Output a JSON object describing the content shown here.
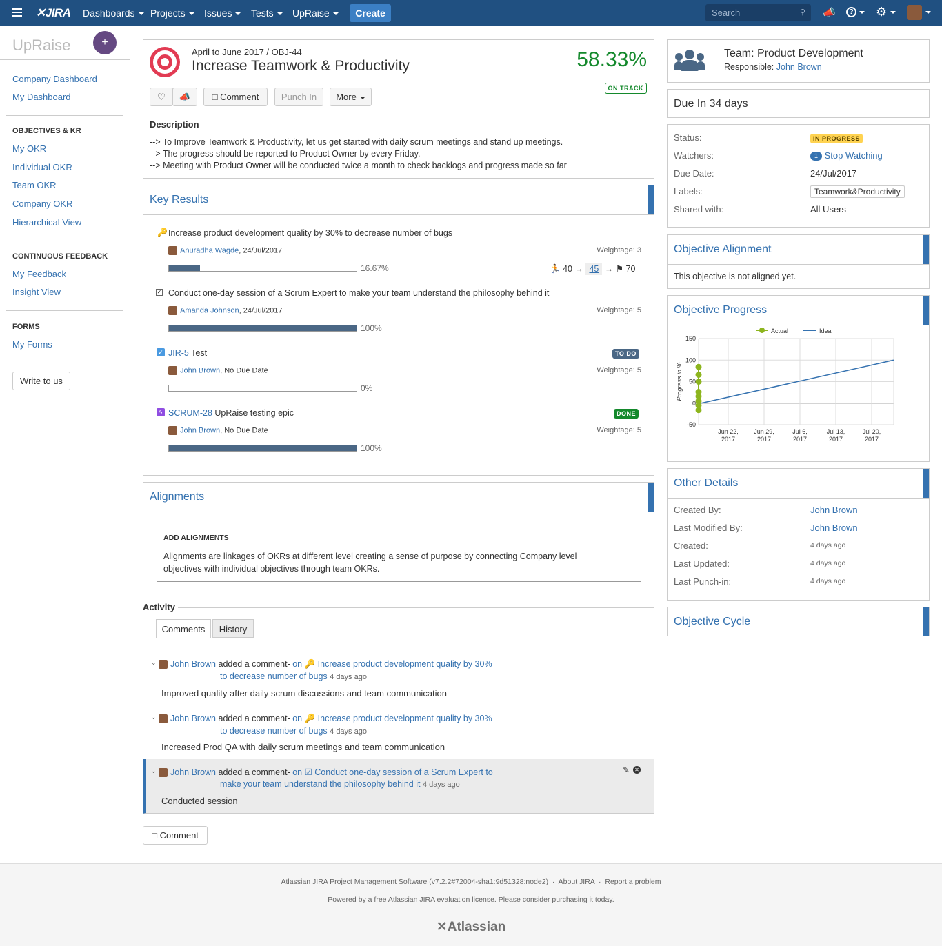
{
  "header": {
    "logo": "JIRA",
    "nav": [
      "Dashboards",
      "Projects",
      "Issues",
      "Tests",
      "UpRaise"
    ],
    "create": "Create",
    "search_placeholder": "Search"
  },
  "sidebar": {
    "app_name": "UpRaise",
    "top_links": [
      "Company Dashboard",
      "My Dashboard"
    ],
    "okr_heading": "OBJECTIVES & KR",
    "okr_links": [
      "My OKR",
      "Individual OKR",
      "Team OKR",
      "Company OKR",
      "Hierarchical View"
    ],
    "feedback_heading": "CONTINUOUS FEEDBACK",
    "feedback_links": [
      "My Feedback",
      "Insight View"
    ],
    "forms_heading": "FORMS",
    "forms_links": [
      "My Forms"
    ],
    "write_btn": "Write to us"
  },
  "objective": {
    "breadcrumb": "April to June 2017 / OBJ-44",
    "title": "Increase Teamwork & Productivity",
    "percent": "58.33%",
    "status": "ON TRACK",
    "buttons": {
      "comment": "Comment",
      "punch": "Punch In",
      "more": "More"
    },
    "desc_heading": "Description",
    "desc_lines": [
      "--> To Improve Teamwork & Productivity, let us get started with daily scrum meetings and stand up meetings.",
      "--> The progress should be reported to Product Owner by every Friday.",
      "--> Meeting with Product Owner will be conducted twice a month to check backlogs and progress made so far"
    ]
  },
  "key_results": {
    "title": "Key Results",
    "items": [
      {
        "title": "Increase product development quality by 30% to decrease number of bugs",
        "owner": "Anuradha Wagde",
        "meta": ", 24/Jul/2017",
        "weight": "Weightage: 3",
        "pct": "16.67%",
        "fill": 16.67,
        "start": "40",
        "current": "45",
        "target": "70"
      },
      {
        "title": "Conduct one-day session of a Scrum Expert to make your team understand the philosophy behind it",
        "owner": "Amanda Johnson",
        "meta": ", 24/Jul/2017",
        "weight": "Weightage: 5",
        "pct": "100%",
        "fill": 100
      },
      {
        "key": "JIR-5",
        "title": " Test",
        "owner": "John Brown",
        "meta": ", No Due Date",
        "weight": "Weightage: 5",
        "pct": "0%",
        "fill": 0,
        "badge": "TO DO"
      },
      {
        "key": "SCRUM-28",
        "title": " UpRaise testing epic",
        "owner": "John Brown",
        "meta": ", No Due Date",
        "weight": "Weightage: 5",
        "pct": "100%",
        "fill": 100,
        "badge": "DONE"
      }
    ]
  },
  "alignments": {
    "title": "Alignments",
    "box_heading": "ADD ALIGNMENTS",
    "box_text_1": "Alignments are linkages of OKRs at different level creating a sense of purpose by connecting Company level",
    "box_text_2": "objectives with individual objectives through team OKRs."
  },
  "activity": {
    "title": "Activity",
    "tabs": [
      "Comments",
      "History"
    ],
    "comments": [
      {
        "author": "John Brown",
        "action": " added a comment- ",
        "on": "on",
        "link1": "Increase product development quality by 30%",
        "link2": "to decrease number of bugs",
        "time": "4 days ago",
        "text": "Improved quality after daily scrum discussions and team communication"
      },
      {
        "author": "John Brown",
        "action": " added a comment- ",
        "on": "on",
        "link1": "Increase product development quality by 30%",
        "link2": "to decrease number of bugs",
        "time": "4 days ago",
        "text": "Increased Prod QA with daily scrum meetings and team communication"
      },
      {
        "author": "John Brown",
        "action": " added a comment- ",
        "on": "on",
        "link1": "Conduct one-day session of a Scrum Expert to",
        "link2": "make your team understand the philosophy behind it",
        "time": "4 days ago",
        "text": "Conducted session"
      }
    ],
    "comment_btn": "Comment"
  },
  "right": {
    "team": "Team: Product Development",
    "responsible_label": "Responsible: ",
    "responsible": "John Brown",
    "due": "Due In 34 days",
    "details": {
      "status_l": "Status:",
      "status_v": "IN PROGRESS",
      "watchers_l": "Watchers:",
      "watchers_count": "1",
      "watchers_v": "Stop Watching",
      "due_l": "Due Date:",
      "due_v": "24/Jul/2017",
      "labels_l": "Labels:",
      "labels_v": "Teamwork&Productivity",
      "shared_l": "Shared with:",
      "shared_v": "All Users"
    },
    "alignment_title": "Objective Alignment",
    "alignment_text": "This objective is not aligned yet.",
    "progress_title": "Objective Progress",
    "other_title": "Other Details",
    "other": [
      {
        "l": "Created By:",
        "v": "John Brown",
        "link": true
      },
      {
        "l": "Last Modified By:",
        "v": "John Brown",
        "link": true
      },
      {
        "l": "Created:",
        "v": "4 days ago"
      },
      {
        "l": "Last Updated:",
        "v": "4 days ago"
      },
      {
        "l": "Last Punch-in:",
        "v": "4 days ago"
      }
    ],
    "cycle_title": "Objective Cycle"
  },
  "chart_data": {
    "type": "line",
    "ylabel": "Progress in %",
    "ylim": [
      -50,
      150
    ],
    "yticks": [
      "150",
      "100",
      "50",
      "0",
      "-50"
    ],
    "xticks": [
      [
        "Jun 22,",
        "2017"
      ],
      [
        "Jun 29,",
        "2017"
      ],
      [
        "Jul 6,",
        "2017"
      ],
      [
        "Jul 13,",
        "2017"
      ],
      [
        "Jul 20,",
        "2017"
      ]
    ],
    "legend": "top",
    "series": [
      {
        "name": "Actual",
        "color": "#8db51e",
        "values": [
          -16,
          -5,
          5,
          16,
          26,
          50,
          66,
          84
        ]
      },
      {
        "name": "Ideal",
        "color": "#3572b0",
        "start": 0,
        "end": 100
      }
    ]
  },
  "footer": {
    "line1a": "Atlassian JIRA Project Management Software (v7.2.2#72004-sha1:9d51328:node2)",
    "line1b": "About JIRA",
    "line1c": "Report a problem",
    "line2": "Powered by a free Atlassian JIRA evaluation license. Please consider purchasing it today.",
    "logo": "Atlassian"
  }
}
